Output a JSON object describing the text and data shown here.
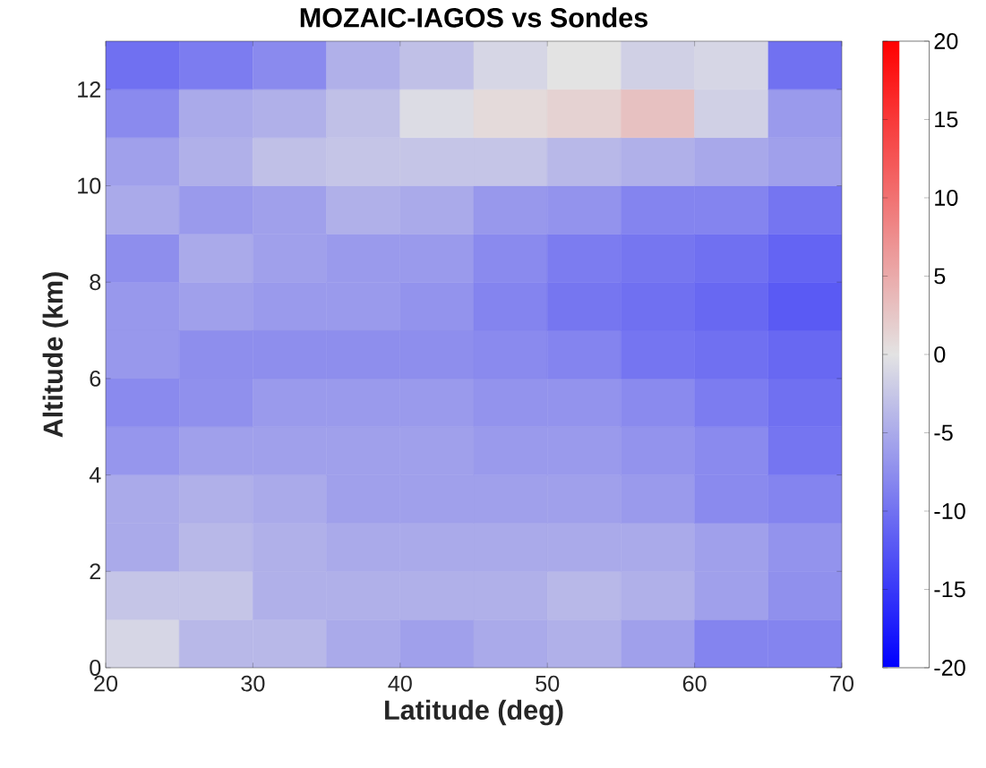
{
  "chart_data": {
    "type": "heatmap",
    "title": "MOZAIC-IAGOS vs Sondes",
    "xlabel": "Latitude (deg)",
    "ylabel": "Altitude (km)",
    "xlim": [
      20,
      70
    ],
    "xticks": [
      20,
      30,
      40,
      50,
      60,
      70
    ],
    "ylim": [
      0,
      13
    ],
    "yticks": [
      0,
      2,
      4,
      6,
      8,
      10,
      12
    ],
    "clim": [
      -20,
      20
    ],
    "cticks": [
      -20,
      -15,
      -10,
      -5,
      0,
      5,
      10,
      15,
      20
    ],
    "cells": [
      [
        -10.1,
        -9.1,
        -7.8,
        -4.5,
        -3.1,
        -1.1,
        0,
        -1.7,
        -1.1,
        -10
      ],
      [
        -7.8,
        -5,
        -4.5,
        -3.1,
        -0.6,
        0.8,
        1.5,
        3,
        -1.7,
        -6.4
      ],
      [
        -5.9,
        -4.5,
        -3.1,
        -2.6,
        -2.6,
        -2.6,
        -3.8,
        -4.5,
        -5.2,
        -5.9
      ],
      [
        -5,
        -6.4,
        -5.9,
        -4.5,
        -5,
        -6.6,
        -7,
        -8.4,
        -8.4,
        -9.7
      ],
      [
        -7.5,
        -5,
        -5.9,
        -6.4,
        -6.4,
        -7.8,
        -9.1,
        -9.6,
        -10.1,
        -11.2
      ],
      [
        -6.6,
        -5.9,
        -6.4,
        -6.4,
        -7,
        -8.4,
        -9.6,
        -10.1,
        -10.8,
        -12.1
      ],
      [
        -6.6,
        -7.5,
        -7.5,
        -7.5,
        -7.5,
        -7.8,
        -8.4,
        -9.7,
        -10.1,
        -10.8
      ],
      [
        -7.8,
        -7.3,
        -6.4,
        -6.4,
        -6.4,
        -7,
        -7,
        -7.8,
        -9.1,
        -10.1
      ],
      [
        -6.8,
        -5.9,
        -5.9,
        -5.9,
        -5.9,
        -6.4,
        -6.4,
        -7,
        -7.8,
        -9.7
      ],
      [
        -5,
        -4.5,
        -5,
        -5.9,
        -5.9,
        -5.9,
        -5.9,
        -6.4,
        -7.8,
        -8.4
      ],
      [
        -5,
        -3.8,
        -4.5,
        -5,
        -5,
        -5,
        -5,
        -5,
        -5.9,
        -7
      ],
      [
        -2.6,
        -2.6,
        -4.5,
        -4.5,
        -4.5,
        -4.5,
        -3.8,
        -4.5,
        -5.9,
        -7.3
      ],
      [
        -1.1,
        -3.8,
        -3.8,
        -5,
        -5.9,
        -5,
        -4.5,
        -5.9,
        -8.4,
        -8.4
      ]
    ]
  }
}
